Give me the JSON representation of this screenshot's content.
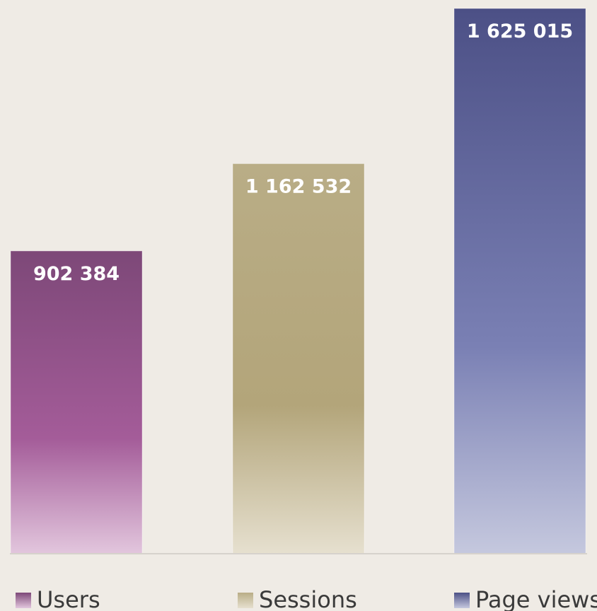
{
  "chart_data": {
    "type": "bar",
    "title": "",
    "xlabel": "",
    "ylabel": "",
    "ylim": [
      0,
      1625015
    ],
    "grid": false,
    "legend_position": "bottom",
    "series": [
      {
        "name": "Users",
        "value": 902384,
        "label": "902 384",
        "color_top": "#7d4878",
        "color_mid": "#a45c99",
        "color_bottom": "#e2c6dd"
      },
      {
        "name": "Sessions",
        "value": 1162532,
        "label": "1 162 532",
        "color_top": "#b9ad86",
        "color_mid": "#b3a57a",
        "color_bottom": "#e6e0cf"
      },
      {
        "name": "Page views",
        "value": 1625015,
        "label": "1 625 015",
        "color_top": "#4c5086",
        "color_mid": "#7a80b4",
        "color_bottom": "#c5c8de"
      }
    ]
  }
}
